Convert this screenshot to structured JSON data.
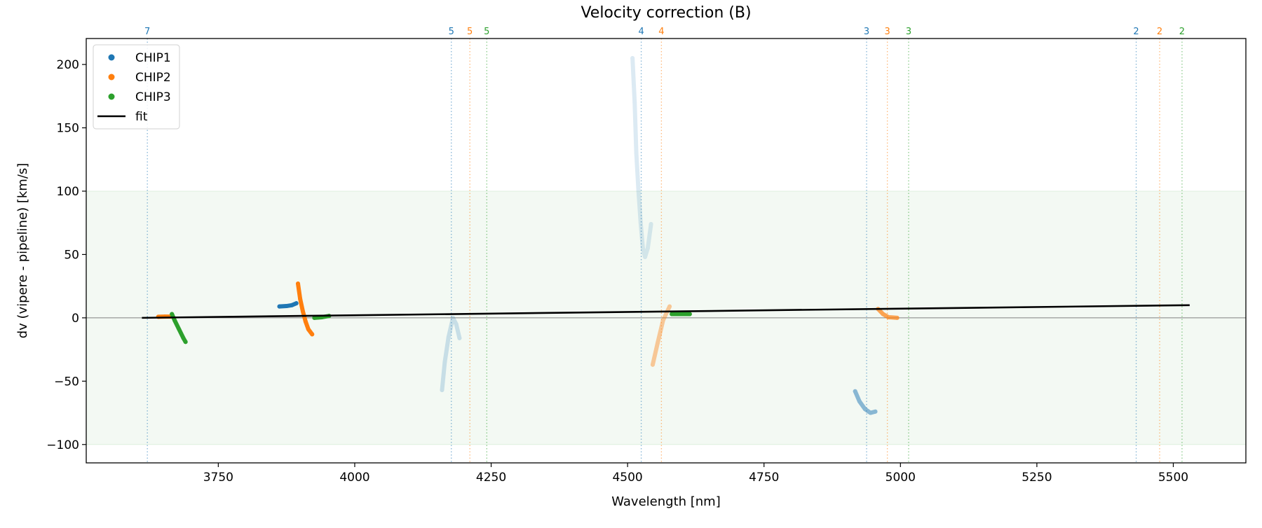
{
  "chart_data": {
    "type": "scatter",
    "title": "Velocity correction (B)",
    "xlabel": "Wavelength [nm]",
    "ylabel": "dv (vipere - pipeline) [km/s]",
    "xlim": [
      3508,
      5633
    ],
    "ylim": [
      -114.5,
      220.5
    ],
    "xticks": [
      3750,
      4000,
      4250,
      4500,
      4750,
      5000,
      5250,
      5500
    ],
    "yticks": [
      -100,
      -50,
      0,
      50,
      100,
      150,
      200
    ],
    "grid": false,
    "legend_position": "top-left",
    "colors": {
      "CHIP1": "#1f77b4",
      "CHIP2": "#ff7f0e",
      "CHIP3": "#2ca02c",
      "fit": "#000000"
    },
    "legend": [
      {
        "label": "CHIP1",
        "kind": "marker",
        "series": "CHIP1"
      },
      {
        "label": "CHIP2",
        "kind": "marker",
        "series": "CHIP2"
      },
      {
        "label": "CHIP3",
        "kind": "marker",
        "series": "CHIP3"
      },
      {
        "label": "fit",
        "kind": "line",
        "series": "fit"
      }
    ],
    "shaded_band": {
      "y": [
        -100,
        100
      ],
      "color": "#2ca02c",
      "opacity": 0.06
    },
    "zero_line": 0,
    "order_lines": [
      {
        "x": 3620,
        "label": "7",
        "series": "CHIP1"
      },
      {
        "x": 4177,
        "label": "5",
        "series": "CHIP1"
      },
      {
        "x": 4211,
        "label": "5",
        "series": "CHIP2"
      },
      {
        "x": 4242,
        "label": "5",
        "series": "CHIP3"
      },
      {
        "x": 4525,
        "label": "4",
        "series": "CHIP1"
      },
      {
        "x": 4562,
        "label": "4",
        "series": "CHIP2"
      },
      {
        "x": 4938,
        "label": "3",
        "series": "CHIP1"
      },
      {
        "x": 4976,
        "label": "3",
        "series": "CHIP2"
      },
      {
        "x": 5015,
        "label": "3",
        "series": "CHIP3"
      },
      {
        "x": 5432,
        "label": "2",
        "series": "CHIP1"
      },
      {
        "x": 5475,
        "label": "2",
        "series": "CHIP2"
      },
      {
        "x": 5516,
        "label": "2",
        "series": "CHIP3"
      }
    ],
    "segments": [
      {
        "series": "CHIP2",
        "alpha": 1,
        "points": [
          [
            3640,
            0.8
          ],
          [
            3652,
            1
          ],
          [
            3665,
            1
          ]
        ]
      },
      {
        "series": "CHIP3",
        "alpha": 1,
        "points": [
          [
            3665,
            3
          ],
          [
            3670,
            -2
          ],
          [
            3678,
            -9
          ],
          [
            3686,
            -16
          ],
          [
            3690,
            -19
          ]
        ]
      },
      {
        "series": "CHIP1",
        "alpha": 1,
        "points": [
          [
            3862,
            9
          ],
          [
            3875,
            9.3
          ],
          [
            3885,
            10
          ],
          [
            3893,
            11.5
          ]
        ]
      },
      {
        "series": "CHIP2",
        "alpha": 1,
        "points": [
          [
            3896,
            27
          ],
          [
            3900,
            15
          ],
          [
            3905,
            5
          ],
          [
            3910,
            -3
          ],
          [
            3915,
            -9
          ],
          [
            3922,
            -13
          ]
        ]
      },
      {
        "series": "CHIP3",
        "alpha": 1,
        "points": [
          [
            3926,
            0
          ],
          [
            3940,
            0.5
          ],
          [
            3953,
            1.5
          ]
        ]
      },
      {
        "series": "CHIP1",
        "alpha": 0.2,
        "points": [
          [
            4160,
            -57
          ],
          [
            4165,
            -35
          ],
          [
            4172,
            -15
          ],
          [
            4180,
            0
          ],
          [
            4186,
            -5
          ],
          [
            4192,
            -16
          ]
        ]
      },
      {
        "series": "CHIP1",
        "alpha": 0.15,
        "points": [
          [
            4509,
            205
          ],
          [
            4513,
            170
          ],
          [
            4516,
            130
          ],
          [
            4520,
            100
          ],
          [
            4524,
            75
          ],
          [
            4528,
            55
          ],
          [
            4532,
            48
          ],
          [
            4537,
            55
          ],
          [
            4543,
            74
          ]
        ]
      },
      {
        "series": "CHIP2",
        "alpha": 0.4,
        "points": [
          [
            4546,
            -37
          ],
          [
            4555,
            -20
          ],
          [
            4565,
            -2
          ],
          [
            4577,
            9
          ]
        ]
      },
      {
        "series": "CHIP3",
        "alpha": 1,
        "points": [
          [
            4581,
            3
          ],
          [
            4598,
            3
          ],
          [
            4614,
            3
          ]
        ]
      },
      {
        "series": "CHIP1",
        "alpha": 0.5,
        "points": [
          [
            4917,
            -58
          ],
          [
            4925,
            -66
          ],
          [
            4935,
            -72
          ],
          [
            4945,
            -75
          ],
          [
            4954,
            -74
          ]
        ]
      },
      {
        "series": "CHIP2",
        "alpha": 0.7,
        "points": [
          [
            4959,
            7
          ],
          [
            4968,
            3
          ],
          [
            4978,
            0.5
          ],
          [
            4994,
            0
          ]
        ]
      }
    ],
    "fit": [
      [
        3610,
        0
      ],
      [
        5530,
        10
      ]
    ]
  }
}
